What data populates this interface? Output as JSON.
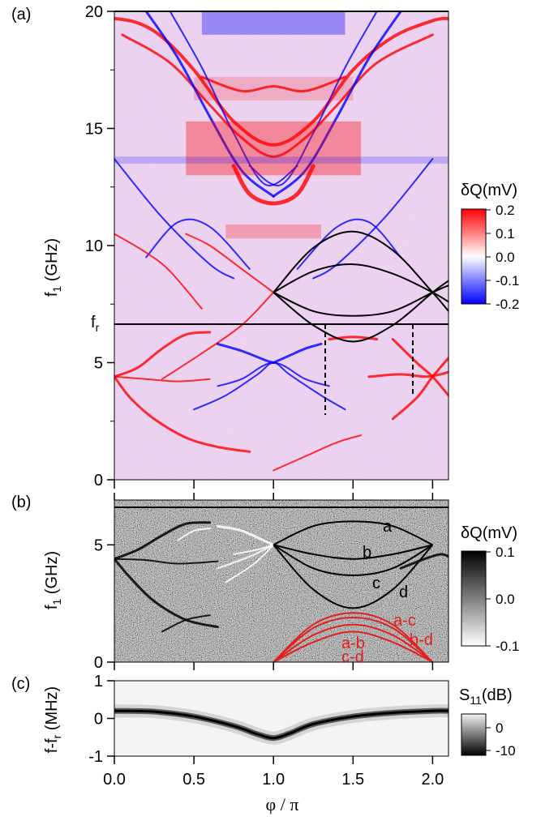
{
  "figure": {
    "x_label": "φ / π",
    "x_ticks": [
      "0.0",
      "0.5",
      "1.0",
      "1.5",
      "2.0"
    ]
  },
  "panels": {
    "a": {
      "tag": "(a)",
      "ylabel_main": "f",
      "ylabel_sub": "1",
      "ylabel_unit": " (GHz)",
      "y_ticks": [
        "0",
        "5",
        "10",
        "15",
        "20"
      ],
      "fr_label_main": "f",
      "fr_label_sub": "r",
      "cbar_title": "δQ(mV)",
      "cbar_ticks": [
        "0.2",
        "0.1",
        "0.0",
        "-0.1",
        "-0.2"
      ]
    },
    "b": {
      "tag": "(b)",
      "ylabel_main": "f",
      "ylabel_sub": "1",
      "ylabel_unit": " (GHz)",
      "y_ticks": [
        "0",
        "5"
      ],
      "curve_labels": [
        "a",
        "b",
        "c",
        "d"
      ],
      "diff_labels": [
        "a-c",
        "b-d",
        "a-b",
        "c-d"
      ],
      "cbar_title": "δQ(mV)",
      "cbar_ticks": [
        "0.1",
        "0.0",
        "-0.1"
      ]
    },
    "c": {
      "tag": "(c)",
      "ylabel": "f-f",
      "ylabel_sub": "r",
      "ylabel_unit": " (MHz)",
      "y_ticks": [
        "-1",
        "0",
        "1"
      ],
      "cbar_title_main": "S",
      "cbar_title_sub": "11",
      "cbar_title_unit": "(dB)",
      "cbar_ticks": [
        "0",
        "-10"
      ]
    }
  },
  "colors": {
    "positive_a": "#ff0000",
    "negative_a": "#0000ff",
    "theory": "#000000",
    "difference": "#e02020"
  },
  "chart_data": [
    {
      "type": "heatmap",
      "panel": "a",
      "x_range": [
        0,
        2.1
      ],
      "y_range": [
        0,
        20
      ],
      "resonator_frequency_line_GHz": 6.6,
      "dashed_markers_phi": [
        1.32,
        1.88
      ],
      "theory_curves": [
        {
          "x": [
            1.0,
            1.25,
            1.5,
            1.75,
            2.0,
            2.1
          ],
          "y": [
            8.0,
            9.9,
            10.6,
            9.8,
            8.0,
            7.2
          ]
        },
        {
          "x": [
            1.0,
            1.25,
            1.5,
            1.75,
            2.0,
            2.1
          ],
          "y": [
            8.0,
            8.9,
            9.2,
            8.8,
            8.0,
            7.6
          ]
        },
        {
          "x": [
            1.0,
            1.25,
            1.5,
            1.75,
            2.0,
            2.1
          ],
          "y": [
            8.0,
            7.2,
            7.0,
            7.2,
            8.0,
            8.3
          ]
        },
        {
          "x": [
            1.0,
            1.25,
            1.5,
            1.75,
            2.0,
            2.1
          ],
          "y": [
            8.0,
            6.6,
            5.9,
            6.6,
            8.0,
            8.5
          ]
        }
      ],
      "color_range": [
        -0.2,
        0.2
      ]
    },
    {
      "type": "heatmap",
      "panel": "b",
      "x_range": [
        0,
        2.1
      ],
      "y_range": [
        0,
        6.6
      ],
      "series": [
        {
          "name": "a",
          "x": [
            1.0,
            1.25,
            1.5,
            1.75,
            2.0
          ],
          "y": [
            5.0,
            5.8,
            6.0,
            5.8,
            5.0
          ]
        },
        {
          "name": "b",
          "x": [
            1.0,
            1.25,
            1.5,
            1.75,
            2.0
          ],
          "y": [
            5.0,
            4.6,
            4.4,
            4.6,
            5.0
          ]
        },
        {
          "name": "c",
          "x": [
            1.0,
            1.25,
            1.5,
            1.75,
            2.0
          ],
          "y": [
            5.0,
            4.0,
            3.7,
            4.0,
            5.0
          ]
        },
        {
          "name": "d",
          "x": [
            1.0,
            1.25,
            1.5,
            1.75,
            2.0
          ],
          "y": [
            5.0,
            3.1,
            2.3,
            3.1,
            5.0
          ]
        },
        {
          "name": "a-c",
          "x": [
            1.0,
            1.25,
            1.5,
            1.75,
            2.0
          ],
          "y": [
            0.0,
            1.6,
            2.1,
            1.6,
            0.0
          ]
        },
        {
          "name": "b-d",
          "x": [
            1.0,
            1.25,
            1.5,
            1.75,
            2.0
          ],
          "y": [
            0.0,
            1.45,
            1.9,
            1.45,
            0.0
          ]
        },
        {
          "name": "a-b",
          "x": [
            1.0,
            1.25,
            1.5,
            1.75,
            2.0
          ],
          "y": [
            0.0,
            1.15,
            1.6,
            1.15,
            0.0
          ]
        },
        {
          "name": "c-d",
          "x": [
            1.0,
            1.25,
            1.5,
            1.75,
            2.0
          ],
          "y": [
            0.0,
            0.85,
            1.3,
            0.85,
            0.0
          ]
        }
      ],
      "color_range": [
        -0.1,
        0.1
      ]
    },
    {
      "type": "heatmap",
      "panel": "c",
      "x_range": [
        0,
        2.1
      ],
      "y_range": [
        -1,
        1
      ],
      "resonance_trace": {
        "x": [
          0.0,
          0.25,
          0.5,
          0.75,
          0.9,
          1.0,
          1.1,
          1.25,
          1.5,
          1.75,
          2.0,
          2.1
        ],
        "y": [
          0.2,
          0.18,
          0.05,
          -0.2,
          -0.42,
          -0.52,
          -0.4,
          -0.15,
          0.05,
          0.15,
          0.2,
          0.2
        ]
      },
      "color_range": [
        -10,
        0
      ]
    }
  ]
}
